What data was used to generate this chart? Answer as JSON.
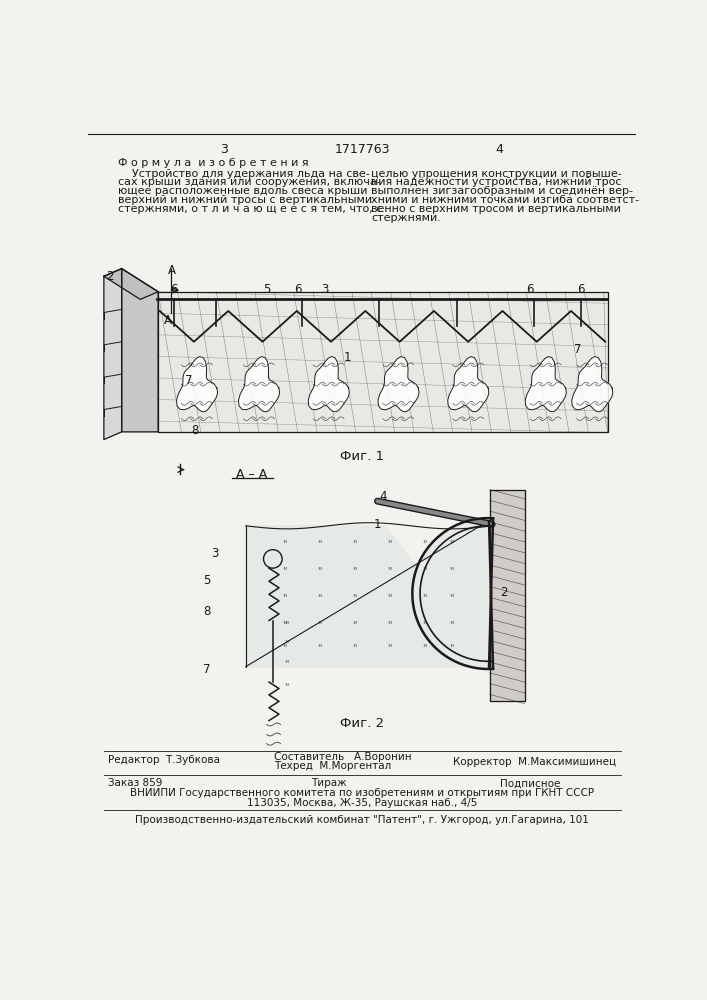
{
  "page_numbers": [
    "3",
    "1717763",
    "4"
  ],
  "formula_title": "Ф о р м у л а  и з о б р е т е н и я",
  "formula_text_left_lines": [
    "    Устройство для удержания льда на све-",
    "сах крыши здания или сооружения, включа-",
    "ющее расположенные вдоль свеса крыши",
    "верхний и нижний тросы с вертикальными",
    "стержнями, о т л и ч а ю щ е е с я тем, что, с"
  ],
  "formula_text_right_lines": [
    "целью упрощения конструкции и повыше-",
    "ния надёжности устройства, нижний трос",
    "выполнен зигзагообразным и соединён вер-",
    "хними и нижними точками изгиба соответст-",
    "венно с верхним тросом и вертикальными",
    "стержнями."
  ],
  "fig1_label": "Фиг. 1",
  "fig2_label": "Фиг. 2",
  "section_aa_label": "А – А",
  "footer_left": "Редактор  Т.Зубкова",
  "footer_mid1": "Составитель   А.Воронин",
  "footer_mid2": "Техред  М.Моргентал",
  "footer_right": "Корректор  М.Максимишинец",
  "footer_order": "Заказ 859",
  "footer_tirazh": "Тираж",
  "footer_podpisnoe": "Подписное",
  "footer_vniipii": "ВНИИПИ Государственного комитета по изобретениям и открытиям при ГКНТ СССР",
  "footer_address": "113035, Москва, Ж-35, Раушская наб., 4/5",
  "footer_factory": "Производственно-издательский комбинат \"Патент\", г. Ужгород, ул.Гагарина, 101",
  "bg_color": "#f2f2ee",
  "line_color": "#1a1a1a",
  "text_color": "#1a1a1a"
}
